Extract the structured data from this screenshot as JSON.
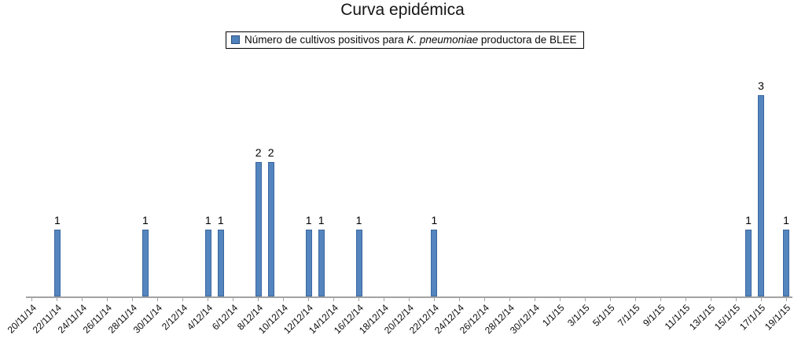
{
  "page_title": "Curva epidémica",
  "legend": {
    "text_prefix": "Número de cultivos positivos para ",
    "text_italic": "K. pneumoniae",
    "text_suffix": " productora de BLEE"
  },
  "colors": {
    "bar_fill": "#5485be",
    "bar_border": "#3a67a0",
    "axis_line": "#a3a3a3",
    "text": "#0b0b0b"
  },
  "chart_data": {
    "type": "bar",
    "title": "Curva epidémica",
    "legend_entry": "Número de cultivos positivos para K. pneumoniae productora de BLEE",
    "legend_position": "top",
    "grid": false,
    "y_axis_shown": false,
    "bar_value_labels_shown": true,
    "ylim": [
      0,
      3.5
    ],
    "x_axis": {
      "start_date": "20/11/14",
      "end_date": "19/1/15",
      "unit": "days",
      "tick_label_interval_days": 2,
      "tick_label_rotation_deg": -45
    },
    "x_tick_labels": [
      "20/11/14",
      "22/11/14",
      "24/11/14",
      "26/11/14",
      "28/11/14",
      "30/11/14",
      "2/12/14",
      "4/12/14",
      "6/12/14",
      "8/12/14",
      "10/12/14",
      "12/12/14",
      "14/12/14",
      "16/12/14",
      "18/12/14",
      "20/12/14",
      "22/12/14",
      "24/12/14",
      "26/12/14",
      "28/12/14",
      "30/12/14",
      "1/1/15",
      "3/1/15",
      "5/1/15",
      "7/1/15",
      "9/1/15",
      "11/1/15",
      "13/1/15",
      "15/1/15",
      "17/1/15",
      "19/1/15"
    ],
    "points": [
      {
        "date": "22/11/14",
        "value": 1
      },
      {
        "date": "29/11/14",
        "value": 1
      },
      {
        "date": "4/12/14",
        "value": 1
      },
      {
        "date": "5/12/14",
        "value": 1
      },
      {
        "date": "8/12/14",
        "value": 2
      },
      {
        "date": "9/12/14",
        "value": 2
      },
      {
        "date": "12/12/14",
        "value": 1
      },
      {
        "date": "13/12/14",
        "value": 1
      },
      {
        "date": "16/12/14",
        "value": 1
      },
      {
        "date": "22/12/14",
        "value": 1
      },
      {
        "date": "16/1/15",
        "value": 1
      },
      {
        "date": "17/1/15",
        "value": 3
      },
      {
        "date": "19/1/15",
        "value": 1
      }
    ]
  }
}
